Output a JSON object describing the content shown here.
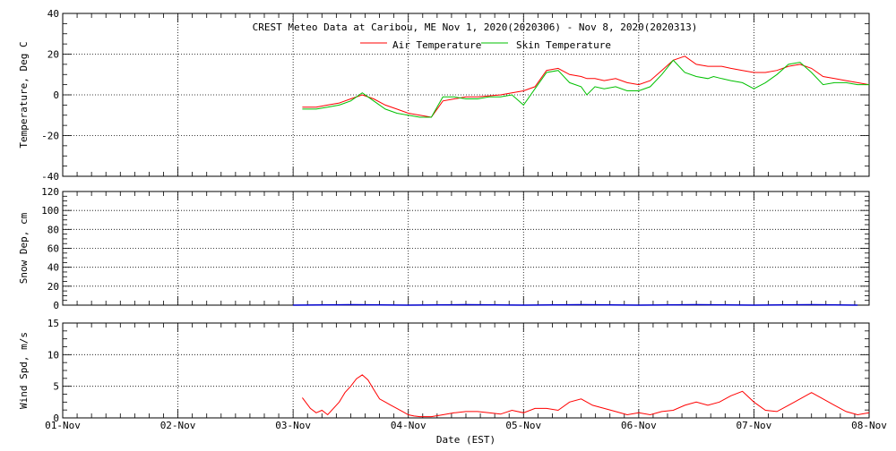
{
  "title": "CREST Meteo Data at Caribou, ME   Nov  1, 2020(2020306) - Nov  8, 2020(2020313)",
  "xlabel": "Date (EST)",
  "x_ticks": [
    "01-Nov",
    "02-Nov",
    "03-Nov",
    "04-Nov",
    "05-Nov",
    "06-Nov",
    "07-Nov",
    "08-Nov"
  ],
  "colors": {
    "air": "#ff0000",
    "skin": "#00c000",
    "snow": "#0000cc",
    "wind": "#ff0000"
  },
  "chart_data": [
    {
      "type": "line",
      "ylabel": "Temperature, Deg C",
      "xlim": [
        0,
        7
      ],
      "ylim": [
        -40,
        40
      ],
      "y_ticks": [
        "40",
        "20",
        "0",
        "-20",
        "-40"
      ],
      "legend": [
        {
          "name": "Air Temperature",
          "color": "#ff0000"
        },
        {
          "name": "Skin Temperature",
          "color": "#00c000"
        }
      ],
      "series": [
        {
          "name": "Air Temperature",
          "x": [
            2.08,
            2.2,
            2.3,
            2.4,
            2.5,
            2.6,
            2.7,
            2.8,
            2.9,
            3.0,
            3.1,
            3.2,
            3.3,
            3.4,
            3.5,
            3.6,
            3.7,
            3.8,
            3.9,
            4.0,
            4.1,
            4.2,
            4.3,
            4.4,
            4.5,
            4.55,
            4.62,
            4.7,
            4.8,
            4.9,
            5.0,
            5.1,
            5.2,
            5.3,
            5.4,
            5.5,
            5.6,
            5.65,
            5.72,
            5.8,
            5.9,
            6.0,
            6.1,
            6.2,
            6.3,
            6.4,
            6.5,
            6.6,
            6.7,
            6.8,
            6.9,
            7.0
          ],
          "y": [
            -6,
            -6,
            -5,
            -4,
            -2,
            0,
            -2,
            -5,
            -7,
            -9,
            -10,
            -11,
            -3,
            -2,
            -1,
            -1,
            -0.5,
            0,
            1,
            2,
            4,
            12,
            13,
            10,
            9,
            8,
            8,
            7,
            8,
            6,
            5,
            7,
            12,
            17,
            19,
            15,
            14,
            14,
            14,
            13,
            12,
            11,
            11,
            12,
            14,
            15,
            13,
            9,
            8,
            7,
            6,
            5
          ]
        },
        {
          "name": "Skin Temperature",
          "x": [
            2.08,
            2.2,
            2.3,
            2.4,
            2.5,
            2.6,
            2.7,
            2.8,
            2.9,
            3.0,
            3.1,
            3.2,
            3.3,
            3.4,
            3.5,
            3.6,
            3.7,
            3.8,
            3.9,
            4.0,
            4.1,
            4.2,
            4.3,
            4.4,
            4.5,
            4.55,
            4.62,
            4.7,
            4.8,
            4.9,
            5.0,
            5.1,
            5.2,
            5.3,
            5.4,
            5.5,
            5.6,
            5.65,
            5.72,
            5.8,
            5.9,
            6.0,
            6.1,
            6.2,
            6.3,
            6.4,
            6.5,
            6.6,
            6.7,
            6.8,
            6.9,
            7.0
          ],
          "y": [
            -7,
            -7,
            -6,
            -5,
            -3,
            1,
            -3,
            -7,
            -9,
            -10,
            -11,
            -11,
            -1,
            -1,
            -2,
            -2,
            -1,
            -1,
            0,
            -5,
            3,
            11,
            12,
            6,
            4,
            0,
            4,
            3,
            4,
            2,
            2,
            4,
            10,
            17,
            11,
            9,
            8,
            9,
            8,
            7,
            6,
            3,
            6,
            10,
            15,
            16,
            11,
            5,
            6,
            6,
            5,
            5
          ]
        }
      ]
    },
    {
      "type": "line",
      "ylabel": "Snow Dep, cm",
      "xlim": [
        0,
        7
      ],
      "ylim": [
        0,
        120
      ],
      "y_ticks": [
        "120",
        "100",
        "80",
        "60",
        "40",
        "20",
        "0"
      ],
      "series": [
        {
          "name": "Snow Depth",
          "x": [
            2.0,
            2.5,
            3.0,
            3.5,
            4.0,
            4.5,
            5.0,
            5.5,
            6.0,
            6.5,
            6.9
          ],
          "y": [
            0,
            0.5,
            0,
            0.5,
            0,
            0.5,
            0,
            0.5,
            0,
            0.5,
            0
          ]
        }
      ]
    },
    {
      "type": "line",
      "ylabel": "Wind Spd, m/s",
      "xlim": [
        0,
        7
      ],
      "ylim": [
        0,
        15
      ],
      "y_ticks": [
        "15",
        "10",
        "5",
        "0"
      ],
      "series": [
        {
          "name": "Wind Speed",
          "x": [
            2.08,
            2.15,
            2.2,
            2.25,
            2.3,
            2.35,
            2.4,
            2.45,
            2.5,
            2.55,
            2.6,
            2.65,
            2.7,
            2.75,
            2.8,
            2.85,
            2.9,
            2.95,
            3.0,
            3.05,
            3.1,
            3.2,
            3.3,
            3.4,
            3.5,
            3.6,
            3.7,
            3.8,
            3.9,
            4.0,
            4.1,
            4.2,
            4.3,
            4.4,
            4.5,
            4.6,
            4.7,
            4.8,
            4.9,
            5.0,
            5.1,
            5.2,
            5.3,
            5.4,
            5.5,
            5.6,
            5.7,
            5.8,
            5.9,
            6.0,
            6.1,
            6.2,
            6.3,
            6.4,
            6.5,
            6.6,
            6.7,
            6.8,
            6.9,
            7.0
          ],
          "y": [
            3.2,
            1.5,
            0.8,
            1.2,
            0.5,
            1.5,
            2.5,
            4,
            5,
            6.2,
            6.8,
            6,
            4.5,
            3,
            2.5,
            2,
            1.5,
            1,
            0.5,
            0.3,
            0.2,
            0.2,
            0.5,
            0.8,
            1,
            1,
            0.8,
            0.6,
            1.2,
            0.8,
            1.5,
            1.5,
            1.2,
            2.5,
            3,
            2,
            1.5,
            1,
            0.5,
            0.8,
            0.5,
            1,
            1.2,
            2,
            2.5,
            2,
            2.5,
            3.5,
            4.2,
            2.5,
            1.2,
            1,
            2,
            3,
            4,
            3,
            2,
            1,
            0.5,
            0.8
          ]
        }
      ]
    }
  ]
}
